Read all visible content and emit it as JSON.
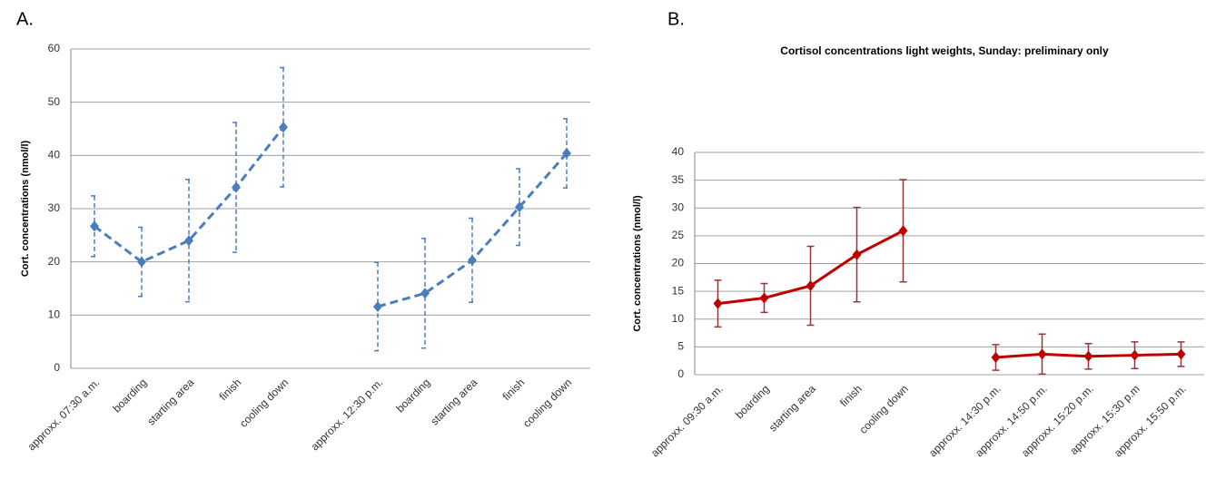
{
  "chart_data": [
    {
      "type": "line",
      "label": "A.",
      "ylabel": "Cort. concentrations  (nmol/l)",
      "categories": [
        "approxx. 07:30 a.m.",
        "boarding",
        "starting area",
        "finish",
        "cooling down",
        null,
        "approxx. 12:30 p.m.",
        "boarding",
        "starting area",
        "finish",
        "cooling down"
      ],
      "values": [
        26.7,
        20,
        24,
        34,
        45.3,
        null,
        11.6,
        14.1,
        20.3,
        30.3,
        40.4
      ],
      "errors": [
        5.7,
        6.5,
        11.5,
        12.2,
        11.2,
        null,
        8.3,
        10.3,
        7.9,
        7.2,
        6.5
      ],
      "color": "#4a7ebb",
      "error_color": "#4a7ebb",
      "line_style": "dashed",
      "ylim": [
        0,
        60
      ],
      "yticks": [
        0,
        10,
        20,
        30,
        40,
        50,
        60
      ],
      "grid": true
    },
    {
      "type": "line",
      "label": "B.",
      "title": "Cortisol concentrations light weights, Sunday: preliminary only",
      "ylabel": "Cort. concentrations  (nmol/l)",
      "categories": [
        "approxx. 09:30 a.m.",
        "boarding",
        "starting area",
        "finish",
        "cooling down",
        null,
        "approxx. 14:30 p.m.",
        "approxx. 14:50 p.m.",
        "approxx. 15:20 p.m.",
        "approxx. 15:30 p.m",
        "approxx. 15:50 p.m."
      ],
      "values": [
        12.8,
        13.8,
        16,
        21.6,
        25.9,
        null,
        3.1,
        3.7,
        3.3,
        3.5,
        3.7
      ],
      "errors": [
        4.2,
        2.6,
        7.1,
        8.5,
        9.2,
        null,
        2.3,
        3.6,
        2.3,
        2.4,
        2.2
      ],
      "color": "#c00000",
      "error_color": "#953735",
      "line_style": "solid",
      "ylim": [
        0,
        40
      ],
      "yticks": [
        0,
        5,
        10,
        15,
        20,
        25,
        30,
        35,
        40
      ],
      "grid": true
    }
  ]
}
